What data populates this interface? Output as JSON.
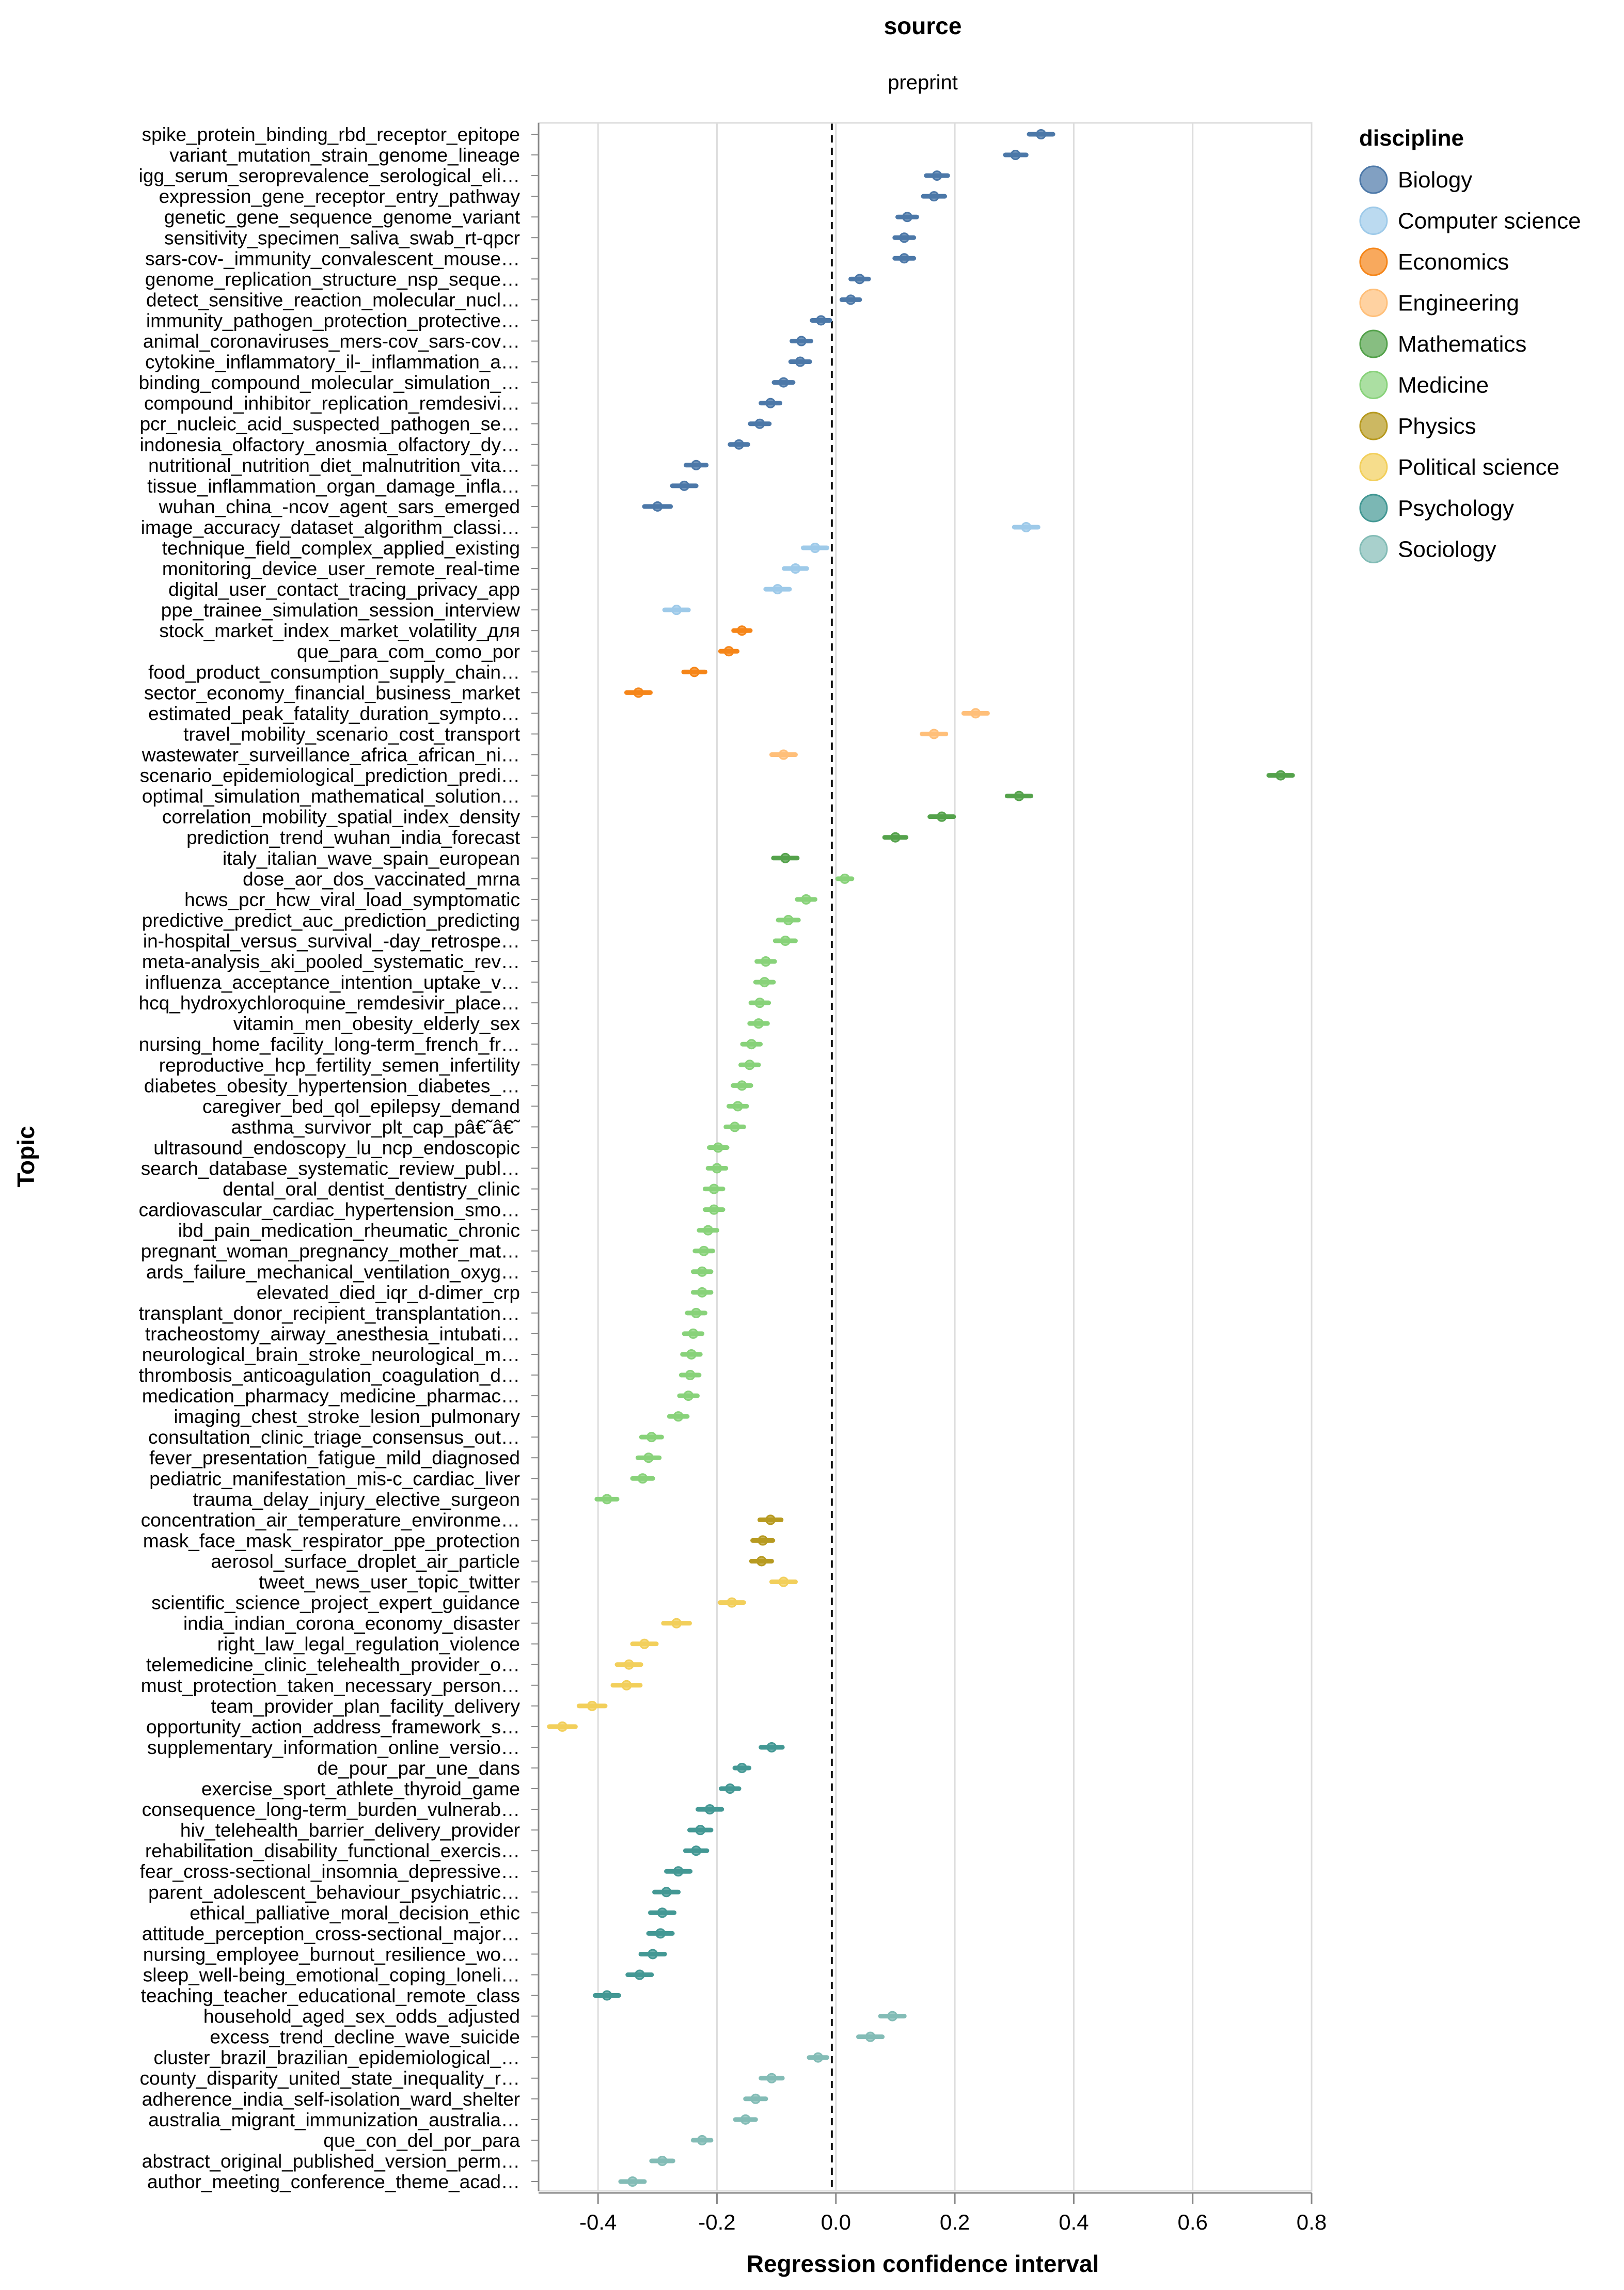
{
  "header": {
    "facet_field": "source",
    "facet_value": "preprint"
  },
  "chart_data": {
    "type": "scatter",
    "subtype": "dot-with-confidence-interval",
    "xlabel": "Regression confidence interval",
    "ylabel": "Topic",
    "xlim": [
      -0.5,
      0.8
    ],
    "xticks": [
      "-0.4",
      "-0.2",
      "0.0",
      "0.2",
      "0.4",
      "0.6",
      "0.8"
    ],
    "xtick_values": [
      -0.4,
      -0.2,
      0.0,
      0.2,
      0.4,
      0.6,
      0.8
    ],
    "reference_line": 0.0,
    "grid": true,
    "legend": {
      "title": "discipline",
      "placement": "right",
      "entries": [
        {
          "name": "Biology",
          "color": "#4c78a8"
        },
        {
          "name": "Computer science",
          "color": "#9ecae9"
        },
        {
          "name": "Economics",
          "color": "#f58518"
        },
        {
          "name": "Engineering",
          "color": "#ffbf79"
        },
        {
          "name": "Mathematics",
          "color": "#54a24b"
        },
        {
          "name": "Medicine",
          "color": "#88d27a"
        },
        {
          "name": "Physics",
          "color": "#b79a20"
        },
        {
          "name": "Political science",
          "color": "#f2cf5b"
        },
        {
          "name": "Psychology",
          "color": "#439894"
        },
        {
          "name": "Sociology",
          "color": "#83bcb6"
        }
      ]
    },
    "points": [
      {
        "topic": "spike_protein_binding_rbd_receptor_epitope",
        "discipline": "Biology",
        "value": 0.345,
        "low": 0.325,
        "high": 0.365
      },
      {
        "topic": "variant_mutation_strain_genome_lineage",
        "discipline": "Biology",
        "value": 0.302,
        "low": 0.285,
        "high": 0.32
      },
      {
        "topic": "igg_serum_seroprevalence_serological_eli…",
        "discipline": "Biology",
        "value": 0.17,
        "low": 0.152,
        "high": 0.188
      },
      {
        "topic": "expression_gene_receptor_entry_pathway",
        "discipline": "Biology",
        "value": 0.165,
        "low": 0.147,
        "high": 0.183
      },
      {
        "topic": "genetic_gene_sequence_genome_variant",
        "discipline": "Biology",
        "value": 0.12,
        "low": 0.104,
        "high": 0.136
      },
      {
        "topic": "sensitivity_specimen_saliva_swab_rt-qpcr",
        "discipline": "Biology",
        "value": 0.115,
        "low": 0.099,
        "high": 0.131
      },
      {
        "topic": "sars-cov-_immunity_convalescent_mouse…",
        "discipline": "Biology",
        "value": 0.115,
        "low": 0.099,
        "high": 0.131
      },
      {
        "topic": "genome_replication_structure_nsp_seque…",
        "discipline": "Biology",
        "value": 0.04,
        "low": 0.025,
        "high": 0.055
      },
      {
        "topic": "detect_sensitive_reaction_molecular_nucl…",
        "discipline": "Biology",
        "value": 0.025,
        "low": 0.01,
        "high": 0.04
      },
      {
        "topic": "immunity_pathogen_protection_protective…",
        "discipline": "Biology",
        "value": -0.025,
        "low": -0.04,
        "high": -0.01
      },
      {
        "topic": "animal_coronaviruses_mers-cov_sars-cov…",
        "discipline": "Biology",
        "value": -0.058,
        "low": -0.074,
        "high": -0.042
      },
      {
        "topic": "cytokine_inflammatory_il-_inflammation_a…",
        "discipline": "Biology",
        "value": -0.06,
        "low": -0.076,
        "high": -0.044
      },
      {
        "topic": "binding_compound_molecular_simulation_…",
        "discipline": "Biology",
        "value": -0.088,
        "low": -0.104,
        "high": -0.072
      },
      {
        "topic": "compound_inhibitor_replication_remdesivi…",
        "discipline": "Biology",
        "value": -0.11,
        "low": -0.126,
        "high": -0.094
      },
      {
        "topic": "pcr_nucleic_acid_suspected_pathogen_se…",
        "discipline": "Biology",
        "value": -0.128,
        "low": -0.144,
        "high": -0.112
      },
      {
        "topic": "indonesia_olfactory_anosmia_olfactory_dy…",
        "discipline": "Biology",
        "value": -0.163,
        "low": -0.178,
        "high": -0.148
      },
      {
        "topic": "nutritional_nutrition_diet_malnutrition_vita…",
        "discipline": "Biology",
        "value": -0.235,
        "low": -0.252,
        "high": -0.218
      },
      {
        "topic": "tissue_inflammation_organ_damage_infla…",
        "discipline": "Biology",
        "value": -0.255,
        "low": -0.275,
        "high": -0.235
      },
      {
        "topic": "wuhan_china_-ncov_agent_sars_emerged",
        "discipline": "Biology",
        "value": -0.3,
        "low": -0.322,
        "high": -0.278
      },
      {
        "topic": "image_accuracy_dataset_algorithm_classi…",
        "discipline": "Computer science",
        "value": 0.32,
        "low": 0.3,
        "high": 0.34
      },
      {
        "topic": "technique_field_complex_applied_existing",
        "discipline": "Computer science",
        "value": -0.035,
        "low": -0.055,
        "high": -0.015
      },
      {
        "topic": "monitoring_device_user_remote_real-time",
        "discipline": "Computer science",
        "value": -0.068,
        "low": -0.087,
        "high": -0.049
      },
      {
        "topic": "digital_user_contact_tracing_privacy_app",
        "discipline": "Computer science",
        "value": -0.098,
        "low": -0.118,
        "high": -0.078
      },
      {
        "topic": "ppe_trainee_simulation_session_interview",
        "discipline": "Computer science",
        "value": -0.268,
        "low": -0.288,
        "high": -0.248
      },
      {
        "topic": "stock_market_index_market_volatility_для",
        "discipline": "Economics",
        "value": -0.158,
        "low": -0.172,
        "high": -0.144
      },
      {
        "topic": "que_para_com_como_por",
        "discipline": "Economics",
        "value": -0.18,
        "low": -0.194,
        "high": -0.166
      },
      {
        "topic": "food_product_consumption_supply_chain…",
        "discipline": "Economics",
        "value": -0.238,
        "low": -0.256,
        "high": -0.22
      },
      {
        "topic": "sector_economy_financial_business_market",
        "discipline": "Economics",
        "value": -0.332,
        "low": -0.352,
        "high": -0.312
      },
      {
        "topic": "estimated_peak_fatality_duration_sympto…",
        "discipline": "Engineering",
        "value": 0.235,
        "low": 0.215,
        "high": 0.255
      },
      {
        "topic": "travel_mobility_scenario_cost_transport",
        "discipline": "Engineering",
        "value": 0.165,
        "low": 0.145,
        "high": 0.185
      },
      {
        "topic": "wastewater_surveillance_africa_african_ni…",
        "discipline": "Engineering",
        "value": -0.088,
        "low": -0.108,
        "high": -0.068
      },
      {
        "topic": "scenario_epidemiological_prediction_predi…",
        "discipline": "Mathematics",
        "value": 0.748,
        "low": 0.728,
        "high": 0.768
      },
      {
        "topic": "optimal_simulation_mathematical_solution…",
        "discipline": "Mathematics",
        "value": 0.308,
        "low": 0.288,
        "high": 0.328
      },
      {
        "topic": "correlation_mobility_spatial_index_density",
        "discipline": "Mathematics",
        "value": 0.178,
        "low": 0.158,
        "high": 0.198
      },
      {
        "topic": "prediction_trend_wuhan_india_forecast",
        "discipline": "Mathematics",
        "value": 0.1,
        "low": 0.082,
        "high": 0.118
      },
      {
        "topic": "italy_italian_wave_spain_european",
        "discipline": "Mathematics",
        "value": -0.085,
        "low": -0.105,
        "high": -0.065
      },
      {
        "topic": "dose_aor_dos_vaccinated_mrna",
        "discipline": "Medicine",
        "value": 0.015,
        "low": 0.003,
        "high": 0.027
      },
      {
        "topic": "hcws_pcr_hcw_viral_load_symptomatic",
        "discipline": "Medicine",
        "value": -0.05,
        "low": -0.065,
        "high": -0.035
      },
      {
        "topic": "predictive_predict_auc_prediction_predicting",
        "discipline": "Medicine",
        "value": -0.08,
        "low": -0.097,
        "high": -0.063
      },
      {
        "topic": "in-hospital_versus_survival_-day_retrospe…",
        "discipline": "Medicine",
        "value": -0.085,
        "low": -0.102,
        "high": -0.068
      },
      {
        "topic": "meta-analysis_aki_pooled_systematic_rev…",
        "discipline": "Medicine",
        "value": -0.118,
        "low": -0.133,
        "high": -0.103
      },
      {
        "topic": "influenza_acceptance_intention_uptake_v…",
        "discipline": "Medicine",
        "value": -0.12,
        "low": -0.135,
        "high": -0.105
      },
      {
        "topic": "hcq_hydroxychloroquine_remdesivir_place…",
        "discipline": "Medicine",
        "value": -0.128,
        "low": -0.143,
        "high": -0.113
      },
      {
        "topic": "vitamin_men_obesity_elderly_sex",
        "discipline": "Medicine",
        "value": -0.13,
        "low": -0.145,
        "high": -0.115
      },
      {
        "topic": "nursing_home_facility_long-term_french_fr…",
        "discipline": "Medicine",
        "value": -0.142,
        "low": -0.157,
        "high": -0.127
      },
      {
        "topic": "reproductive_hcp_fertility_semen_infertility",
        "discipline": "Medicine",
        "value": -0.145,
        "low": -0.16,
        "high": -0.13
      },
      {
        "topic": "diabetes_obesity_hypertension_diabetes_…",
        "discipline": "Medicine",
        "value": -0.158,
        "low": -0.173,
        "high": -0.143
      },
      {
        "topic": "caregiver_bed_qol_epilepsy_demand",
        "discipline": "Medicine",
        "value": -0.165,
        "low": -0.18,
        "high": -0.15
      },
      {
        "topic": "asthma_survivor_plt_cap_pâ€˜â€˜",
        "discipline": "Medicine",
        "value": -0.17,
        "low": -0.185,
        "high": -0.155
      },
      {
        "topic": "ultrasound_endoscopy_lu_ncp_endoscopic",
        "discipline": "Medicine",
        "value": -0.198,
        "low": -0.213,
        "high": -0.183
      },
      {
        "topic": "search_database_systematic_review_publ…",
        "discipline": "Medicine",
        "value": -0.2,
        "low": -0.215,
        "high": -0.185
      },
      {
        "topic": "dental_oral_dentist_dentistry_clinic",
        "discipline": "Medicine",
        "value": -0.205,
        "low": -0.22,
        "high": -0.19
      },
      {
        "topic": "cardiovascular_cardiac_hypertension_smo…",
        "discipline": "Medicine",
        "value": -0.205,
        "low": -0.22,
        "high": -0.19
      },
      {
        "topic": "ibd_pain_medication_rheumatic_chronic",
        "discipline": "Medicine",
        "value": -0.215,
        "low": -0.23,
        "high": -0.2
      },
      {
        "topic": "pregnant_woman_pregnancy_mother_mat…",
        "discipline": "Medicine",
        "value": -0.222,
        "low": -0.237,
        "high": -0.207
      },
      {
        "topic": "ards_failure_mechanical_ventilation_oxyg…",
        "discipline": "Medicine",
        "value": -0.225,
        "low": -0.24,
        "high": -0.21
      },
      {
        "topic": "elevated_died_iqr_d-dimer_crp",
        "discipline": "Medicine",
        "value": -0.225,
        "low": -0.24,
        "high": -0.21
      },
      {
        "topic": "transplant_donor_recipient_transplantation…",
        "discipline": "Medicine",
        "value": -0.235,
        "low": -0.25,
        "high": -0.22
      },
      {
        "topic": "tracheostomy_airway_anesthesia_intubati…",
        "discipline": "Medicine",
        "value": -0.24,
        "low": -0.255,
        "high": -0.225
      },
      {
        "topic": "neurological_brain_stroke_neurological_m…",
        "discipline": "Medicine",
        "value": -0.243,
        "low": -0.258,
        "high": -0.228
      },
      {
        "topic": "thrombosis_anticoagulation_coagulation_d…",
        "discipline": "Medicine",
        "value": -0.245,
        "low": -0.26,
        "high": -0.23
      },
      {
        "topic": "medication_pharmacy_medicine_pharmac…",
        "discipline": "Medicine",
        "value": -0.248,
        "low": -0.263,
        "high": -0.233
      },
      {
        "topic": "imaging_chest_stroke_lesion_pulmonary",
        "discipline": "Medicine",
        "value": -0.265,
        "low": -0.28,
        "high": -0.25
      },
      {
        "topic": "consultation_clinic_triage_consensus_out…",
        "discipline": "Medicine",
        "value": -0.31,
        "low": -0.327,
        "high": -0.293
      },
      {
        "topic": "fever_presentation_fatigue_mild_diagnosed",
        "discipline": "Medicine",
        "value": -0.315,
        "low": -0.333,
        "high": -0.297
      },
      {
        "topic": "pediatric_manifestation_mis-c_cardiac_liver",
        "discipline": "Medicine",
        "value": -0.325,
        "low": -0.342,
        "high": -0.308
      },
      {
        "topic": "trauma_delay_injury_elective_surgeon",
        "discipline": "Medicine",
        "value": -0.385,
        "low": -0.402,
        "high": -0.368
      },
      {
        "topic": "concentration_air_temperature_environme…",
        "discipline": "Physics",
        "value": -0.11,
        "low": -0.128,
        "high": -0.092
      },
      {
        "topic": "mask_face_mask_respirator_ppe_protection",
        "discipline": "Physics",
        "value": -0.123,
        "low": -0.14,
        "high": -0.106
      },
      {
        "topic": "aerosol_surface_droplet_air_particle",
        "discipline": "Physics",
        "value": -0.125,
        "low": -0.142,
        "high": -0.108
      },
      {
        "topic": "tweet_news_user_topic_twitter",
        "discipline": "Political science",
        "value": -0.088,
        "low": -0.108,
        "high": -0.068
      },
      {
        "topic": "scientific_science_project_expert_guidance",
        "discipline": "Political science",
        "value": -0.175,
        "low": -0.195,
        "high": -0.155
      },
      {
        "topic": "india_indian_corona_economy_disaster",
        "discipline": "Political science",
        "value": -0.268,
        "low": -0.29,
        "high": -0.246
      },
      {
        "topic": "right_law_legal_regulation_violence",
        "discipline": "Political science",
        "value": -0.322,
        "low": -0.342,
        "high": -0.302
      },
      {
        "topic": "telemedicine_clinic_telehealth_provider_o…",
        "discipline": "Political science",
        "value": -0.348,
        "low": -0.368,
        "high": -0.328
      },
      {
        "topic": "must_protection_taken_necessary_person…",
        "discipline": "Political science",
        "value": -0.352,
        "low": -0.375,
        "high": -0.329
      },
      {
        "topic": "team_provider_plan_facility_delivery",
        "discipline": "Political science",
        "value": -0.41,
        "low": -0.432,
        "high": -0.388
      },
      {
        "topic": "opportunity_action_address_framework_s…",
        "discipline": "Political science",
        "value": -0.46,
        "low": -0.482,
        "high": -0.438
      },
      {
        "topic": "supplementary_information_online_versio…",
        "discipline": "Psychology",
        "value": -0.108,
        "low": -0.126,
        "high": -0.09
      },
      {
        "topic": "de_pour_par_une_dans",
        "discipline": "Psychology",
        "value": -0.158,
        "low": -0.17,
        "high": -0.146
      },
      {
        "topic": "exercise_sport_athlete_thyroid_game",
        "discipline": "Psychology",
        "value": -0.178,
        "low": -0.193,
        "high": -0.163
      },
      {
        "topic": "consequence_long-term_burden_vulnerab…",
        "discipline": "Psychology",
        "value": -0.212,
        "low": -0.232,
        "high": -0.192
      },
      {
        "topic": "hiv_telehealth_barrier_delivery_provider",
        "discipline": "Psychology",
        "value": -0.228,
        "low": -0.246,
        "high": -0.21
      },
      {
        "topic": "rehabilitation_disability_functional_exercis…",
        "discipline": "Psychology",
        "value": -0.235,
        "low": -0.253,
        "high": -0.217
      },
      {
        "topic": "fear_cross-sectional_insomnia_depressive…",
        "discipline": "Psychology",
        "value": -0.265,
        "low": -0.285,
        "high": -0.245
      },
      {
        "topic": "parent_adolescent_behaviour_psychiatric…",
        "discipline": "Psychology",
        "value": -0.285,
        "low": -0.305,
        "high": -0.265
      },
      {
        "topic": "ethical_palliative_moral_decision_ethic",
        "discipline": "Psychology",
        "value": -0.292,
        "low": -0.312,
        "high": -0.272
      },
      {
        "topic": "attitude_perception_cross-sectional_major…",
        "discipline": "Psychology",
        "value": -0.295,
        "low": -0.315,
        "high": -0.275
      },
      {
        "topic": "nursing_employee_burnout_resilience_wo…",
        "discipline": "Psychology",
        "value": -0.308,
        "low": -0.328,
        "high": -0.288
      },
      {
        "topic": "sleep_well-being_emotional_coping_loneli…",
        "discipline": "Psychology",
        "value": -0.33,
        "low": -0.35,
        "high": -0.31
      },
      {
        "topic": "teaching_teacher_educational_remote_class",
        "discipline": "Psychology",
        "value": -0.385,
        "low": -0.405,
        "high": -0.365
      },
      {
        "topic": "household_aged_sex_odds_adjusted",
        "discipline": "Sociology",
        "value": 0.095,
        "low": 0.075,
        "high": 0.115
      },
      {
        "topic": "excess_trend_decline_wave_suicide",
        "discipline": "Sociology",
        "value": 0.058,
        "low": 0.038,
        "high": 0.078
      },
      {
        "topic": "cluster_brazil_brazilian_epidemiological_…",
        "discipline": "Sociology",
        "value": -0.03,
        "low": -0.045,
        "high": -0.015
      },
      {
        "topic": "county_disparity_united_state_inequality_r…",
        "discipline": "Sociology",
        "value": -0.108,
        "low": -0.126,
        "high": -0.09
      },
      {
        "topic": "adherence_india_self-isolation_ward_shelter",
        "discipline": "Sociology",
        "value": -0.135,
        "low": -0.152,
        "high": -0.118
      },
      {
        "topic": "australia_migrant_immunization_australia…",
        "discipline": "Sociology",
        "value": -0.152,
        "low": -0.169,
        "high": -0.135
      },
      {
        "topic": "que_con_del_por_para",
        "discipline": "Sociology",
        "value": -0.225,
        "low": -0.24,
        "high": -0.21
      },
      {
        "topic": "abstract_original_published_version_perm…",
        "discipline": "Sociology",
        "value": -0.292,
        "low": -0.31,
        "high": -0.274
      },
      {
        "topic": "author_meeting_conference_theme_acad…",
        "discipline": "Sociology",
        "value": -0.342,
        "low": -0.362,
        "high": -0.322
      }
    ]
  }
}
